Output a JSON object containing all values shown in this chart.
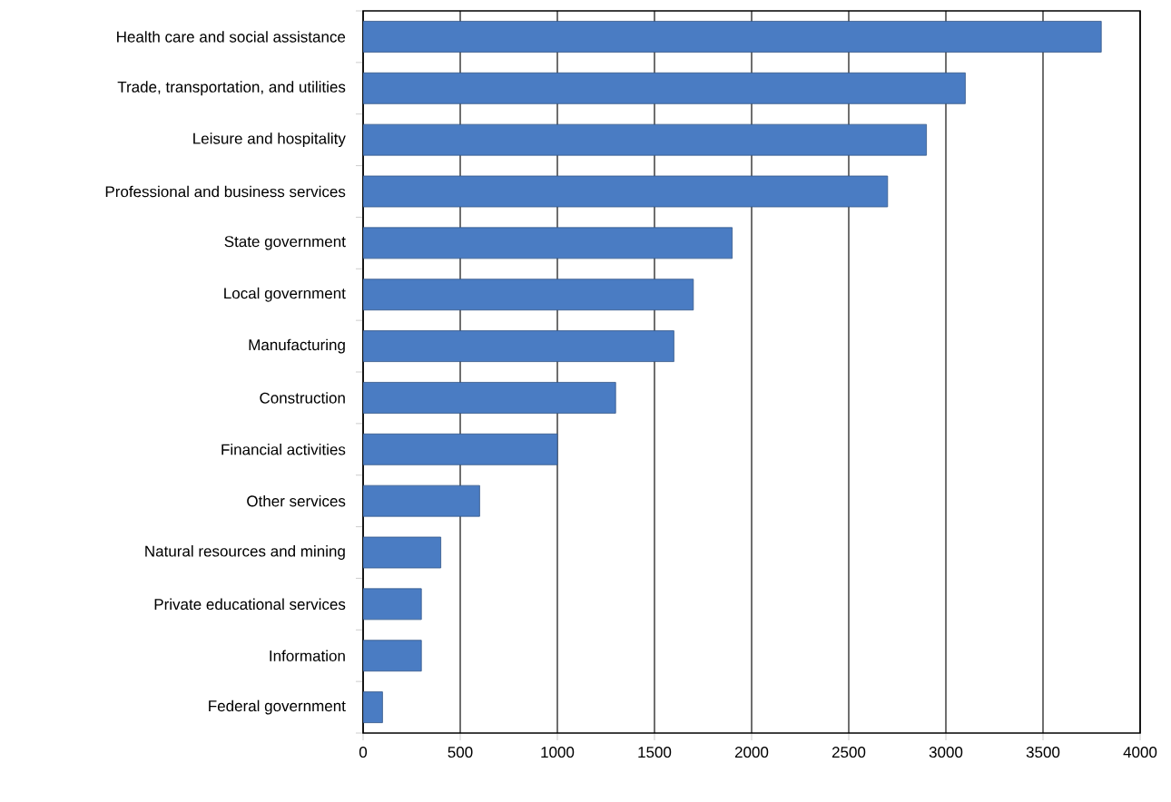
{
  "chart_data": {
    "type": "bar",
    "orientation": "horizontal",
    "categories": [
      "Health care and social assistance",
      "Trade, transportation, and utilities",
      "Leisure and hospitality",
      "Professional and business services",
      "State government",
      "Local government",
      "Manufacturing",
      "Construction",
      "Financial activities",
      "Other services",
      "Natural resources and mining",
      "Private educational services",
      "Information",
      "Federal government"
    ],
    "values": [
      3800,
      3100,
      2900,
      2700,
      1900,
      1700,
      1600,
      1300,
      1000,
      600,
      400,
      300,
      300,
      100
    ],
    "color": "#4a7cc3",
    "xlim": [
      0,
      4000
    ],
    "xticks": [
      0,
      500,
      1000,
      1500,
      2000,
      2500,
      3000,
      3500,
      4000
    ],
    "grid": "x"
  }
}
